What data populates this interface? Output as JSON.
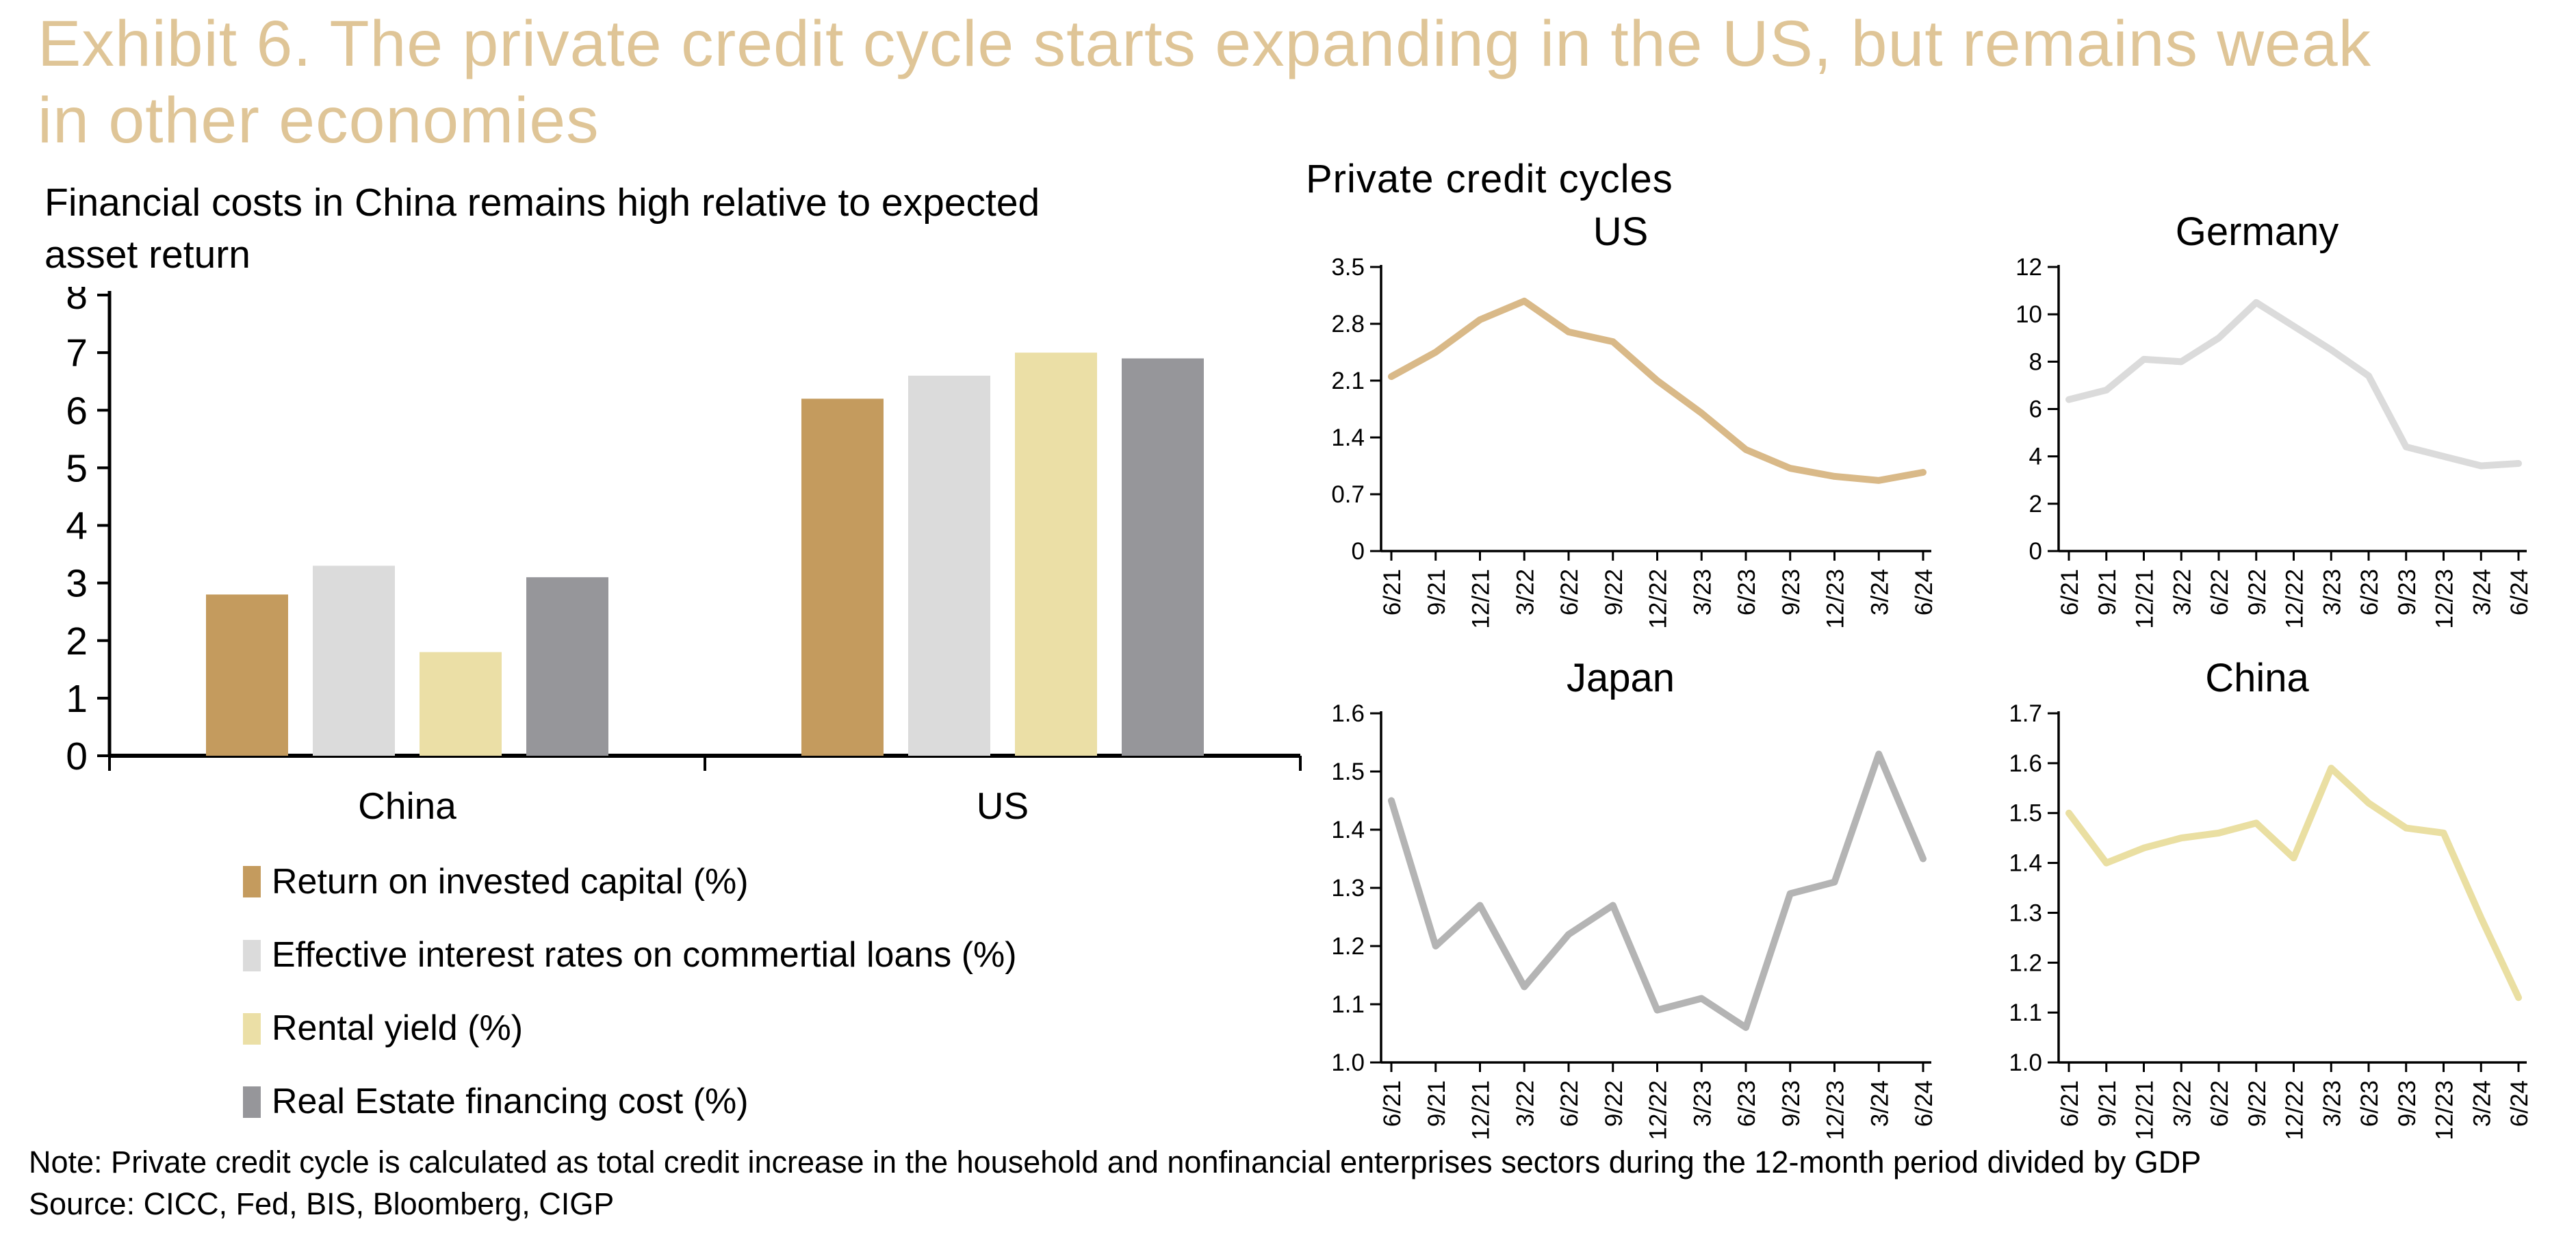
{
  "title": "Exhibit 6. The private credit cycle starts expanding in the US, but remains weak in other economies",
  "colors": {
    "title": "#DFC597",
    "axis": "#000000",
    "bar_brown": "#C49B5E",
    "bar_light_gray": "#DBDBDB",
    "bar_cream": "#EBDFA6",
    "bar_dark_gray": "#96969A",
    "line_us": "#D9B988",
    "line_germany": "#DBDBDB",
    "line_japan": "#B4B4B4",
    "line_china": "#EADFA2"
  },
  "right_panel": {
    "heading": "Private credit cycles"
  },
  "note": "Note: Private credit cycle is calculated as total credit increase in the household and nonfinancial enterprises sectors during the 12-month period divided by GDP",
  "source": "Source: CICC, Fed, BIS, Bloomberg, CIGP",
  "chart_data": [
    {
      "type": "bar",
      "title": "Financial costs in China remains high relative to expected asset return",
      "categories": [
        "China",
        "US"
      ],
      "ylim": [
        0,
        8
      ],
      "yticks": [
        "0",
        "1",
        "2",
        "3",
        "4",
        "5",
        "6",
        "7",
        "8"
      ],
      "grid": false,
      "legend_position": "bottom",
      "series": [
        {
          "name": "Return on invested capital (%)",
          "color": "#C49B5E",
          "values": [
            2.8,
            6.2
          ]
        },
        {
          "name": "Effective interest rates on commertial loans (%)",
          "color": "#DBDBDB",
          "values": [
            3.3,
            6.6
          ]
        },
        {
          "name": "Rental yield (%)",
          "color": "#EBDFA6",
          "values": [
            1.8,
            7.0
          ]
        },
        {
          "name": "Real Estate financing cost (%)",
          "color": "#96969A",
          "values": [
            3.1,
            6.9
          ]
        }
      ]
    },
    {
      "type": "line",
      "title": "US",
      "x": [
        "6/21",
        "9/21",
        "12/21",
        "3/22",
        "6/22",
        "9/22",
        "12/22",
        "3/23",
        "6/23",
        "9/23",
        "12/23",
        "3/24",
        "6/24"
      ],
      "values": [
        2.15,
        2.45,
        2.85,
        3.08,
        2.7,
        2.58,
        2.1,
        1.7,
        1.25,
        1.02,
        0.92,
        0.87,
        0.97
      ],
      "ylim": [
        0,
        3.5
      ],
      "yticks": [
        "0",
        "0.7",
        "1.4",
        "2.1",
        "2.8",
        "3.5"
      ],
      "grid": false,
      "color": "#D9B988"
    },
    {
      "type": "line",
      "title": "Germany",
      "x": [
        "6/21",
        "9/21",
        "12/21",
        "3/22",
        "6/22",
        "9/22",
        "12/22",
        "3/23",
        "6/23",
        "9/23",
        "12/23",
        "3/24",
        "6/24"
      ],
      "values": [
        6.4,
        6.8,
        8.1,
        8.0,
        9.0,
        10.5,
        9.5,
        8.5,
        7.4,
        4.4,
        4.0,
        3.6,
        3.7
      ],
      "ylim": [
        0,
        12
      ],
      "yticks": [
        "0",
        "2",
        "4",
        "6",
        "8",
        "10",
        "12"
      ],
      "grid": false,
      "color": "#DBDBDB"
    },
    {
      "type": "line",
      "title": "Japan",
      "x": [
        "6/21",
        "9/21",
        "12/21",
        "3/22",
        "6/22",
        "9/22",
        "12/22",
        "3/23",
        "6/23",
        "9/23",
        "12/23",
        "3/24",
        "6/24"
      ],
      "values": [
        1.45,
        1.2,
        1.27,
        1.13,
        1.22,
        1.27,
        1.09,
        1.11,
        1.06,
        1.29,
        1.31,
        1.53,
        1.35
      ],
      "ylim": [
        1.0,
        1.6
      ],
      "yticks": [
        "1.0",
        "1.1",
        "1.2",
        "1.3",
        "1.4",
        "1.5",
        "1.6"
      ],
      "grid": false,
      "color": "#B4B4B4"
    },
    {
      "type": "line",
      "title": "China",
      "x": [
        "6/21",
        "9/21",
        "12/21",
        "3/22",
        "6/22",
        "9/22",
        "12/22",
        "3/23",
        "6/23",
        "9/23",
        "12/23",
        "3/24",
        "6/24"
      ],
      "values": [
        1.5,
        1.4,
        1.43,
        1.45,
        1.46,
        1.48,
        1.41,
        1.59,
        1.52,
        1.47,
        1.46,
        1.29,
        1.13
      ],
      "ylim": [
        1.0,
        1.7
      ],
      "yticks": [
        "1.0",
        "1.1",
        "1.2",
        "1.3",
        "1.4",
        "1.5",
        "1.6",
        "1.7"
      ],
      "grid": false,
      "color": "#EADFA2"
    }
  ]
}
